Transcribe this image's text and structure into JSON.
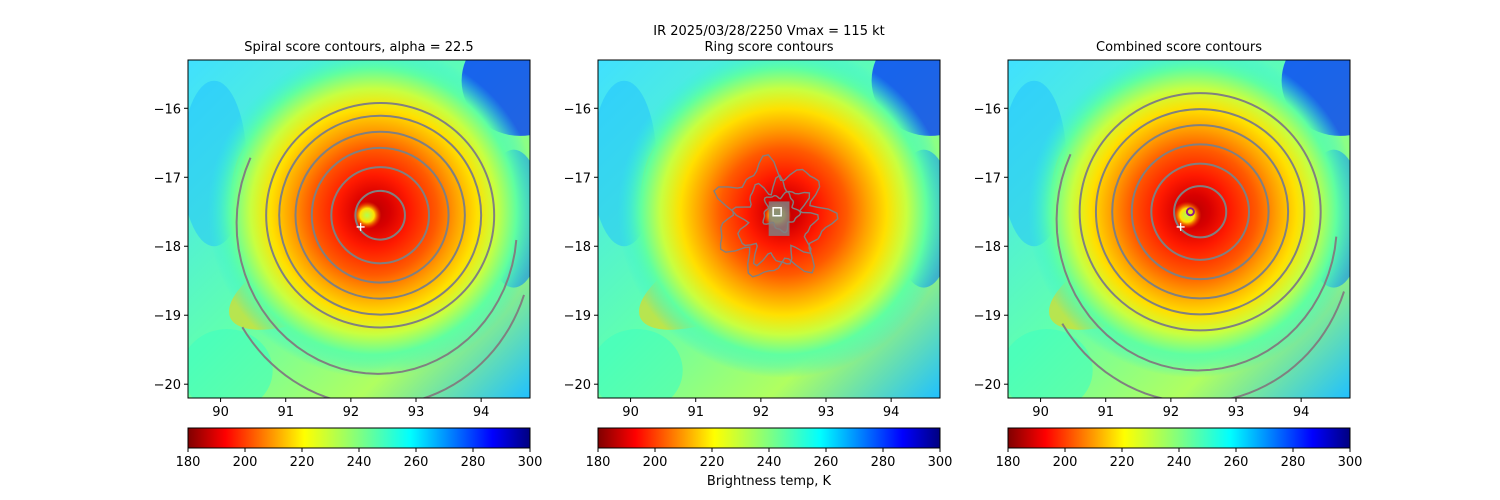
{
  "figure": {
    "suptitle_line1": "IR  2025/03/28/2250    Vmax = 115 kt"
  },
  "colors": {
    "contour": "#808080",
    "colormap": "jet",
    "cross_marker": "#ffffff",
    "ring_center_marker": "#ffffff",
    "combined_center_marker": "#8b1a8b"
  },
  "chart_data": [
    {
      "type": "heatmap",
      "title": "Spiral score contours, alpha = 22.5",
      "xlabel": "",
      "ylabel": "",
      "xlim": [
        89.5,
        94.75
      ],
      "ylim": [
        -20.2,
        -15.3
      ],
      "xticks": [
        "90",
        "91",
        "92",
        "93",
        "94"
      ],
      "yticks": [
        "−16",
        "−17",
        "−18",
        "−19",
        "−20"
      ],
      "colorbar": {
        "min": 180,
        "max": 300,
        "ticks": [
          "180",
          "200",
          "220",
          "240",
          "260",
          "280",
          "300"
        ],
        "label": ""
      },
      "storm_center": [
        92.35,
        -17.5
      ],
      "cross_marker": [
        92.15,
        -17.72
      ],
      "contour_set": "spiral"
    },
    {
      "type": "heatmap",
      "title": "Ring score contours",
      "xlabel": "",
      "ylabel": "",
      "xlim": [
        89.5,
        94.75
      ],
      "ylim": [
        -20.2,
        -15.3
      ],
      "xticks": [
        "90",
        "91",
        "92",
        "93",
        "94"
      ],
      "yticks": [
        "−16",
        "−17",
        "−18",
        "−19",
        "−20"
      ],
      "colorbar": {
        "min": 180,
        "max": 300,
        "ticks": [
          "180",
          "200",
          "220",
          "240",
          "260",
          "280",
          "300"
        ],
        "label": "Brightness temp, K"
      },
      "storm_center": [
        92.35,
        -17.5
      ],
      "ring_center_marker": [
        92.25,
        -17.5
      ],
      "contour_set": "ring"
    },
    {
      "type": "heatmap",
      "title": "Combined score contours",
      "xlabel": "",
      "ylabel": "",
      "xlim": [
        89.5,
        94.75
      ],
      "ylim": [
        -20.2,
        -15.3
      ],
      "xticks": [
        "90",
        "91",
        "92",
        "93",
        "94"
      ],
      "yticks": [
        "−16",
        "−17",
        "−18",
        "−19",
        "−20"
      ],
      "colorbar": {
        "min": 180,
        "max": 300,
        "ticks": [
          "180",
          "200",
          "220",
          "240",
          "260",
          "280",
          "300"
        ],
        "label": ""
      },
      "storm_center": [
        92.35,
        -17.5
      ],
      "cross_marker": [
        92.15,
        -17.72
      ],
      "combined_center_marker": [
        92.3,
        -17.5
      ],
      "contour_set": "combined"
    }
  ]
}
